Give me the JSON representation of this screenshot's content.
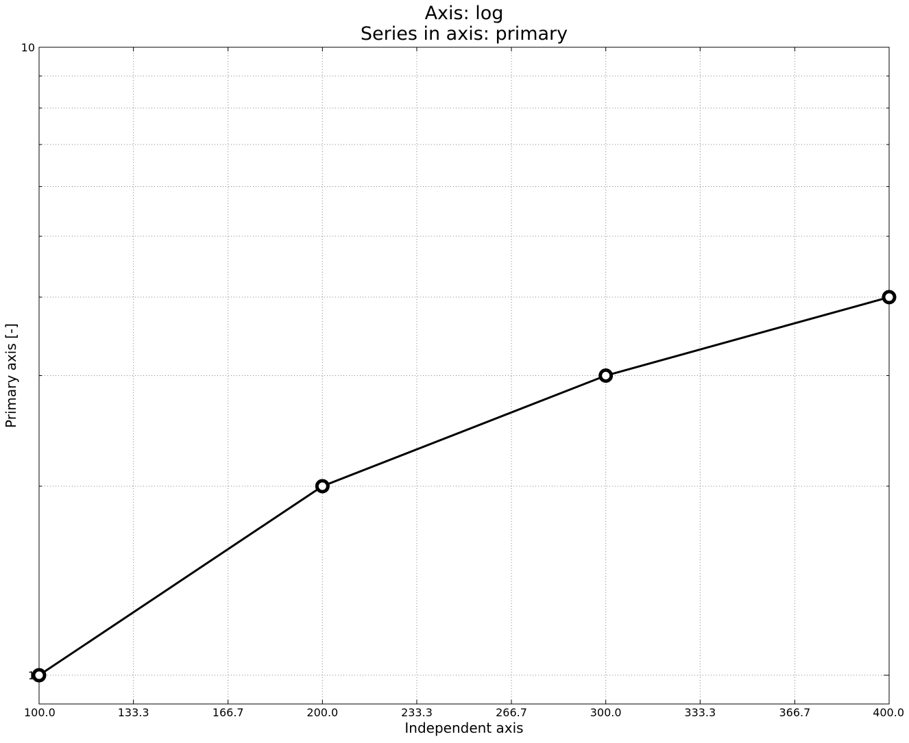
{
  "chart_data": {
    "type": "line",
    "title_lines": [
      "Axis: log",
      "Series in axis: primary"
    ],
    "xlabel": "Independent axis",
    "ylabel": "Primary axis [-]",
    "x_scale": "linear",
    "y_scale": "log",
    "xlim": [
      100,
      400
    ],
    "ylim": [
      0.9,
      10
    ],
    "x_ticks": [
      100,
      133.3,
      166.7,
      200,
      233.3,
      266.7,
      300,
      333.3,
      366.7,
      400
    ],
    "x_tick_labels": [
      "100.0",
      "133.3",
      "166.7",
      "200.0",
      "233.3",
      "266.7",
      "300.0",
      "333.3",
      "366.7",
      "400.0"
    ],
    "y_major_ticks": [
      1,
      10
    ],
    "y_tick_labels": [
      "1",
      "10"
    ],
    "y_minor_ticks": [
      2,
      3,
      4,
      5,
      6,
      7,
      8,
      9
    ],
    "grid": true,
    "legend": false,
    "series": [
      {
        "x": [
          100,
          200,
          300,
          400
        ],
        "y": [
          1,
          2,
          3,
          4
        ],
        "color": "#000000",
        "marker": "circle-open"
      }
    ]
  }
}
